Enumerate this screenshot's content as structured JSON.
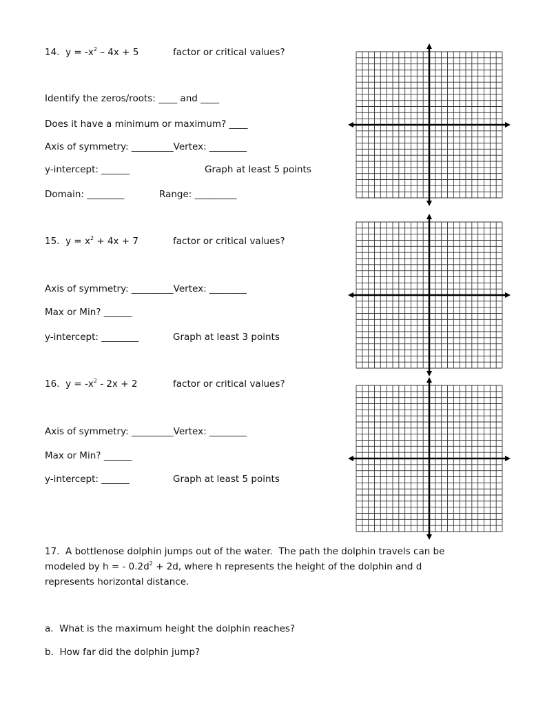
{
  "problems": [
    {
      "number": "14.",
      "eq_a": "y = -x",
      "eq_exp": "2",
      "eq_b": " – 4x + 5",
      "hint": "factor or critical values?",
      "lines": [
        "Identify the zeros/roots: ____ and ____",
        "Does it have a minimum or maximum? ____",
        "Axis of symmetry: _________Vertex: ________",
        "y-intercept: ______",
        "Domain: ________",
        "Range: _________"
      ],
      "graph_note": "Graph at least 5 points"
    },
    {
      "number": "15.",
      "eq_a": "y = x",
      "eq_exp": "2",
      "eq_b": " + 4x + 7",
      "hint": "factor or critical values?",
      "lines": [
        "Axis of symmetry: _________Vertex: ________",
        "Max or Min? ______",
        "y-intercept: ________"
      ],
      "graph_note": "Graph at least 3 points"
    },
    {
      "number": "16.",
      "eq_a": "y = -x",
      "eq_exp": "2",
      "eq_b": " - 2x + 2",
      "hint": "factor or critical values?",
      "lines": [
        "Axis of symmetry: _________Vertex: ________",
        "Max or Min? ______",
        "y-intercept: ______"
      ],
      "graph_note": "Graph at least 5 points"
    }
  ],
  "p17": {
    "line1": "17.  A bottlenose dolphin jumps out of the water.  The path the dolphin travels can be",
    "line2a": "modeled by h = - 0.2d",
    "line2exp": "2",
    "line2b": " + 2d, where h represents the height of the dolphin and d",
    "line3": "represents horizontal distance.",
    "qa": "a.  What is the maximum height the dolphin reaches?",
    "qb": "b.  How far did the dolphin jump?"
  }
}
